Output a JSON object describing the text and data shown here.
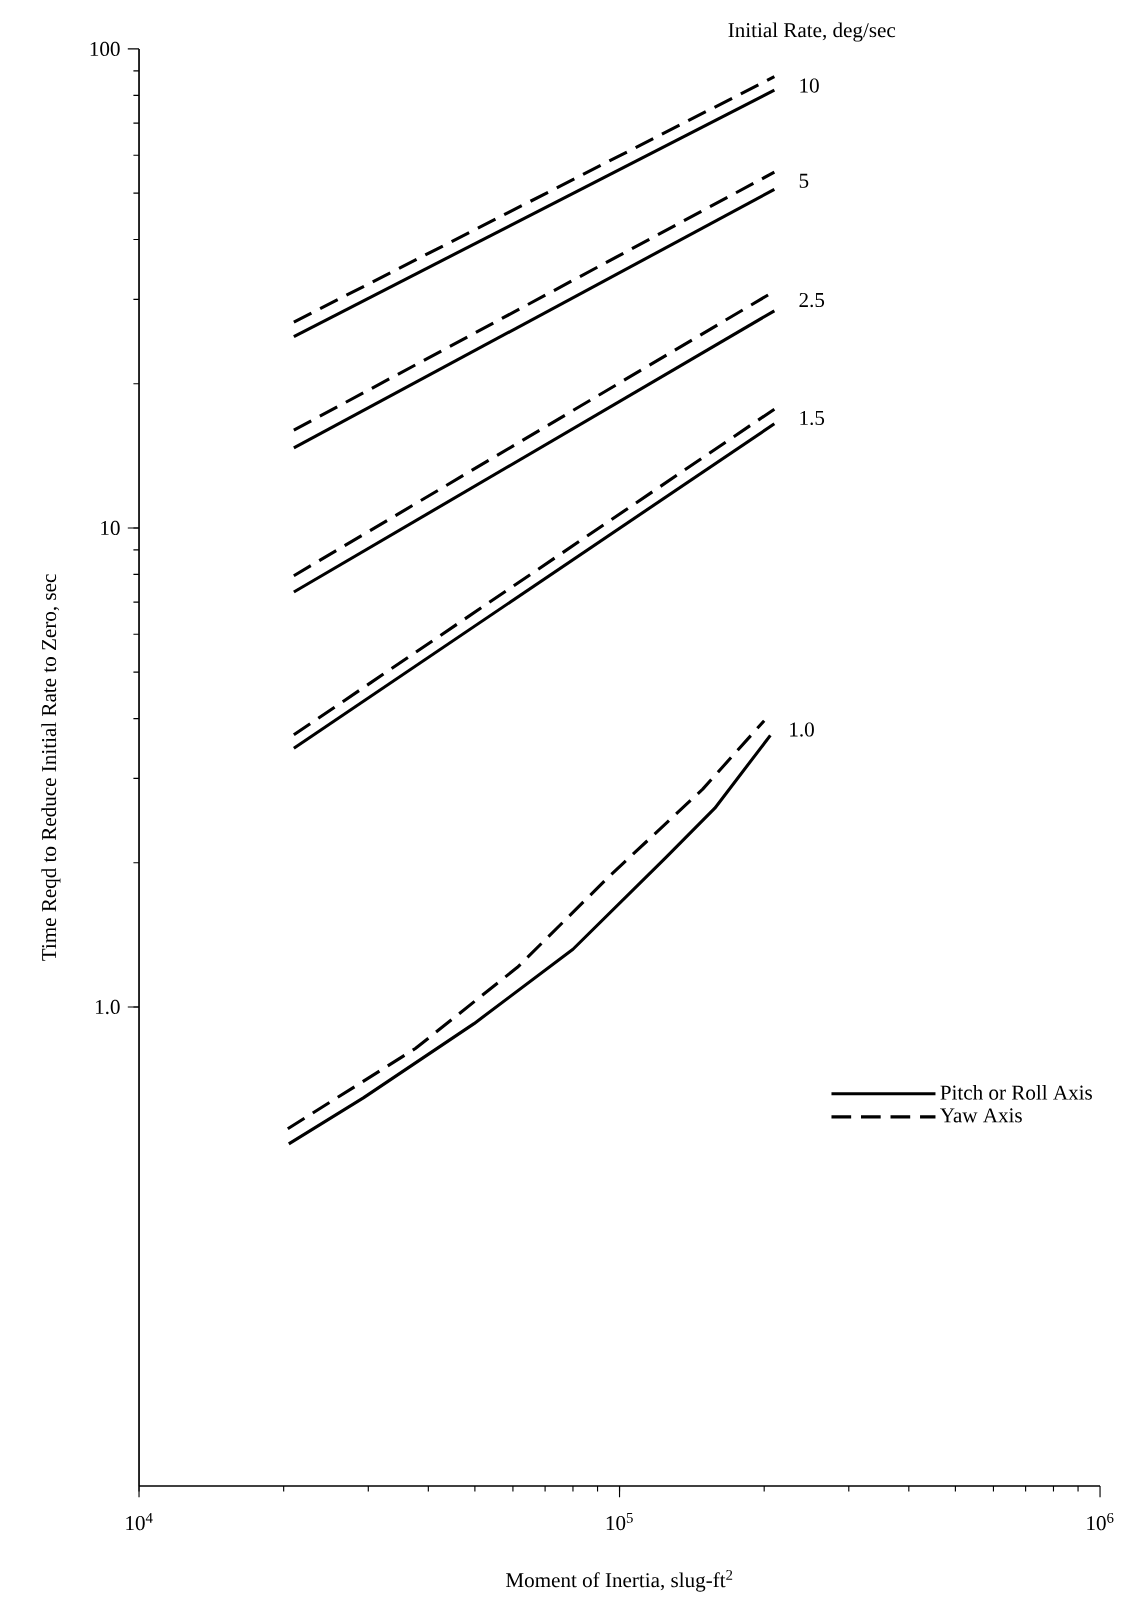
{
  "chart_data": {
    "type": "line",
    "xlabel": "Moment of Inertia, slug-ft$^{2}$",
    "ylabel": "Time Reqd to Reduce Initial Rate to Zero, sec",
    "log": "xy",
    "grid": false,
    "legend": "right",
    "xlim": [
      10000,
      1000000
    ],
    "ylim": [
      0.1,
      100
    ],
    "xticks": [
      {
        "value": 10000,
        "label": "10$^{4}$"
      },
      {
        "value": 100000,
        "label": "10$^{5}$"
      },
      {
        "value": 1000000,
        "label": "10$^{6}$"
      }
    ],
    "yticks": [
      {
        "value": 1,
        "label": "1.0"
      },
      10,
      100
    ],
    "series": [
      {
        "name": "Pitch or Roll Axis",
        "color": "#000000",
        "line_style": "solid",
        "x": [
          21000,
          210000
        ],
        "values": [
          25.1,
          82
        ]
      },
      {
        "name": "Yaw Axis",
        "color": "#000000",
        "line_style": "dashed",
        "x": [
          21000,
          210000
        ],
        "values": [
          26.9,
          87.5
        ]
      },
      {
        "color": "#000000",
        "line_style": "solid",
        "x": [
          21000,
          210000
        ],
        "values": [
          14.7,
          50.9
        ]
      },
      {
        "color": "#000000",
        "line_style": "dashed",
        "x": [
          21000,
          210000
        ],
        "values": [
          16.0,
          55.3
        ]
      },
      {
        "color": "#000000",
        "line_style": "solid",
        "x": [
          21000,
          210000
        ],
        "values": [
          7.35,
          28.4
        ]
      },
      {
        "color": "#000000",
        "line_style": "dashed",
        "x": [
          21000,
          210000
        ],
        "values": [
          7.95,
          31.2
        ]
      },
      {
        "color": "#000000",
        "line_style": "solid",
        "x": [
          21000,
          210000
        ],
        "values": [
          3.47,
          16.5
        ]
      },
      {
        "color": "#000000",
        "line_style": "dashed",
        "x": [
          21000,
          210000
        ],
        "values": [
          3.7,
          17.7
        ]
      },
      {
        "color": "#000000",
        "line_style": "solid",
        "x": [
          20500,
          29300,
          49800,
          80000,
          124800,
          157900,
          206000
        ],
        "values": [
          0.518,
          0.646,
          0.923,
          1.32,
          2.05,
          2.6,
          3.69
        ]
      },
      {
        "color": "#000000",
        "line_style": "dashed",
        "x": [
          20400,
          37600,
          61300,
          95500,
          149000,
          200000
        ],
        "values": [
          0.557,
          0.819,
          1.21,
          1.88,
          2.85,
          3.96
        ]
      }
    ],
    "annotations": [
      "Initial Rate, deg/sec",
      "10",
      "5",
      "2.5",
      "1.5",
      "1.0"
    ]
  }
}
